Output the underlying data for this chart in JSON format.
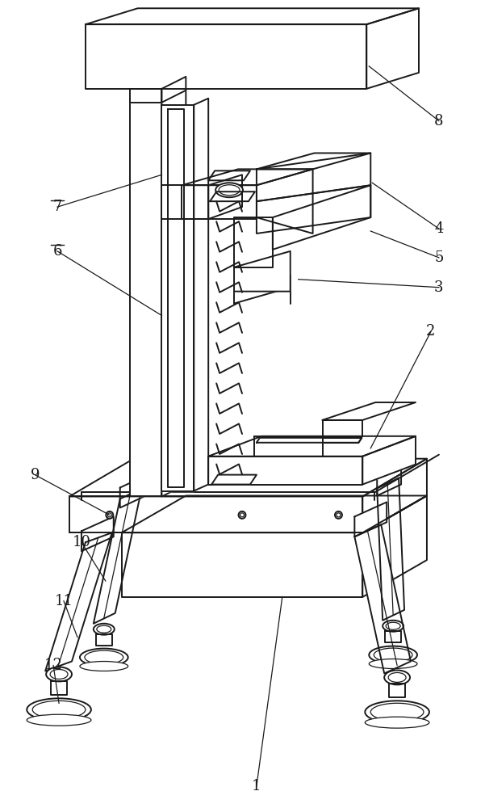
{
  "bg_color": "#ffffff",
  "lc": "#1a1a1a",
  "lw": 1.4,
  "lw_thin": 0.9,
  "figsize": [
    6.01,
    10.0
  ],
  "dpi": 100,
  "label_fontsize": 13
}
